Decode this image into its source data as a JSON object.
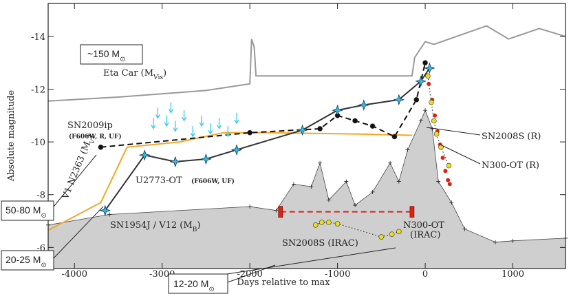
{
  "chart_data": {
    "type": "line",
    "xlabel": "Days relative to max",
    "ylabel": "Absolute magnitude",
    "xlim": [
      -4300,
      1600
    ],
    "ylim": [
      -5.2,
      -15.25
    ],
    "xticks": [
      -4000,
      -3000,
      -2000,
      -1000,
      0,
      1000
    ],
    "yticks": [
      -14,
      -12,
      -10,
      -8,
      -6
    ],
    "series": [
      {
        "color": "#cfcfcf",
        "style": "area",
        "x": [
          -4300,
          -3600,
          -2000,
          -1700,
          -1500,
          -1300,
          -1200,
          -1100,
          -900,
          -800,
          -600,
          -400,
          -300,
          -200,
          -50,
          0,
          80,
          150,
          300,
          450,
          800,
          1000,
          1600
        ],
        "y": [
          -6.85,
          -7.25,
          -7.55,
          -7.4,
          -8.4,
          -8.3,
          -9.2,
          -7.8,
          -8.5,
          -7.6,
          -8.1,
          -9.2,
          -8.5,
          -9.7,
          -10.8,
          -11.2,
          -10.5,
          -8.5,
          -7.7,
          -6.7,
          -6.2,
          -6.25,
          -6.35
        ]
      },
      {
        "color": "#999999",
        "style": "solid",
        "x": [
          -4300,
          -3500,
          -2500,
          -2000,
          -1980,
          -1950,
          -1930,
          -150,
          -120,
          0,
          100,
          700,
          950,
          1300,
          1600
        ],
        "y": [
          -11.55,
          -11.7,
          -11.95,
          -12.2,
          -13.9,
          -13.6,
          -12.5,
          -12.5,
          -13.2,
          -13.8,
          -13.7,
          -14.4,
          -13.9,
          -14.3,
          -14.0
        ]
      },
      {
        "color": "#f5a623",
        "style": "solid",
        "x": [
          -4300,
          -3700,
          -3400,
          -2800,
          -2300,
          -1800,
          -800,
          -150
        ],
        "y": [
          -6.65,
          -7.7,
          -9.8,
          -10.0,
          -10.35,
          -10.35,
          -10.3,
          -10.25
        ]
      },
      {
        "color": "#111111",
        "style": "dashed",
        "marker": "circle",
        "x": [
          -3700,
          -2000,
          -1200,
          -1000,
          -800,
          -600,
          -350,
          -100,
          0
        ],
        "y": [
          -9.8,
          -10.35,
          -10.5,
          -11.0,
          -10.8,
          -10.6,
          -10.2,
          -11.6,
          -13.0
        ]
      },
      {
        "color": "#333333",
        "style": "solid",
        "marker": "star",
        "x": [
          -3650,
          -3200,
          -2850,
          -2500,
          -2150,
          -1400,
          -1000,
          -700,
          -300,
          -50,
          50
        ],
        "y": [
          -7.4,
          -9.5,
          -9.25,
          -9.35,
          -9.7,
          -10.45,
          -11.2,
          -11.4,
          -11.6,
          -12.3,
          -12.8
        ]
      },
      {
        "color": "#dd2211",
        "style": "points",
        "x": [
          40,
          80,
          110,
          140,
          170,
          200,
          230,
          260,
          280
        ],
        "y": [
          -12.2,
          -11.6,
          -11.0,
          -10.4,
          -9.9,
          -9.4,
          -8.9,
          -8.55,
          -8.4
        ]
      },
      {
        "color": "#e8e020",
        "style": "dotted",
        "marker": "circle",
        "x": [
          30,
          70,
          100,
          130,
          180,
          270
        ],
        "y": [
          -12.5,
          -11.5,
          -10.8,
          -10.3,
          -9.8,
          -9.1
        ]
      },
      {
        "color": "#e8e020",
        "style": "dotted",
        "marker": "circle",
        "x": [
          -1250,
          -1180,
          -1100,
          -1000,
          -500,
          -380,
          -300
        ],
        "y": [
          -6.85,
          -6.95,
          -6.95,
          -6.9,
          -6.4,
          -6.5,
          -6.6
        ]
      },
      {
        "color": "#dd2211",
        "style": "dashed",
        "marker": "bar",
        "x": [
          -1650,
          -150
        ],
        "y": [
          -7.35,
          -7.35
        ]
      },
      {
        "color": "#33ccee",
        "style": "limits",
        "x": [
          -3100,
          -3050,
          -2950,
          -2900,
          -2850,
          -2750,
          -2650,
          -2550,
          -2450,
          -2350,
          -2250,
          -2150
        ],
        "y": [
          -10.9,
          -11.3,
          -11.0,
          -11.5,
          -10.8,
          -11.2,
          -10.6,
          -11.0,
          -10.7,
          -10.9,
          -10.6,
          -11.1
        ]
      }
    ],
    "annotations": [
      {
        "text": "~150 M",
        "sub": "⊙"
      },
      {
        "text": "Eta Car (M",
        "sub": "Vis",
        "tail": ")"
      },
      {
        "text": "SN2009ip"
      },
      {
        "text": "(F606W, R, UF)"
      },
      {
        "text": "V1 N2363 (M",
        "sub": "V",
        "tail": ")"
      },
      {
        "text": "U2773-OT"
      },
      {
        "text": "(F606W, UF)"
      },
      {
        "text": "SN1954J / V12 (M",
        "sub": "B",
        "tail": ")"
      },
      {
        "text": "SN2008S (R)"
      },
      {
        "text": "N300-OT (R)"
      },
      {
        "text": "SN2008S (IRAC)"
      },
      {
        "text": "N300-OT"
      },
      {
        "text": "(IRAC)"
      },
      {
        "text": "50-80 M",
        "sub": "⊙"
      },
      {
        "text": "20-25 M",
        "sub": "⊙"
      },
      {
        "text": "12-20 M",
        "sub": "⊙"
      }
    ]
  }
}
